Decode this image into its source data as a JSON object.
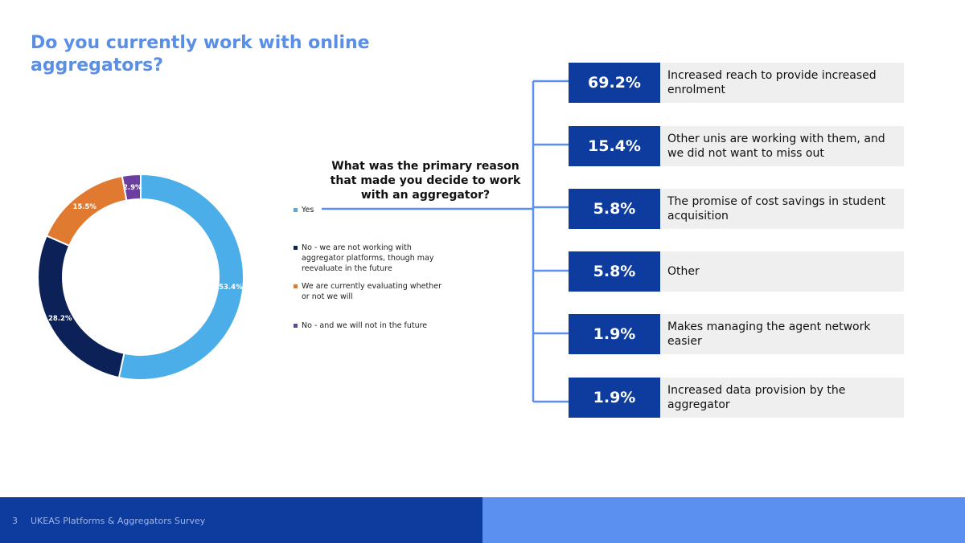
{
  "title": "Do you currently work with online aggregators?",
  "colors": {
    "title": "#5b8fe6",
    "pct_box": "#0d3c9e",
    "reason_bg": "#efefef"
  },
  "chart_data": [
    {
      "type": "pie",
      "categories": [
        "Yes",
        "No - we are not working with aggregator platforms, though may reevaluate in the future",
        "We are currently evaluating whether or not we will",
        "No - and we will not in the future"
      ],
      "values": [
        53.4,
        28.2,
        15.5,
        2.9
      ],
      "data_labels": [
        "53.4%",
        "28.2%",
        "15.5%",
        "2.9%"
      ],
      "colors": [
        "#4baee9",
        "#0c2157",
        "#df7a30",
        "#6b3fa0"
      ],
      "legend_position": "right",
      "donut": true
    },
    {
      "type": "table",
      "title": "What was the primary reason that made you decide to work with an aggregator?",
      "rows": [
        {
          "value": "69.2%",
          "label": "Increased reach to provide increased enrolment"
        },
        {
          "value": "15.4%",
          "label": "Other unis are working with them, and we did not want to miss out"
        },
        {
          "value": "5.8%",
          "label": "The promise of cost savings in student acquisition"
        },
        {
          "value": "5.8%",
          "label": "Other"
        },
        {
          "value": "1.9%",
          "label": "Makes managing the agent network easier"
        },
        {
          "value": "1.9%",
          "label": "Increased data provision by the aggregator"
        }
      ]
    }
  ],
  "footer": {
    "page_number": "3",
    "text": "UKEAS Platforms & Aggregators Survey"
  }
}
